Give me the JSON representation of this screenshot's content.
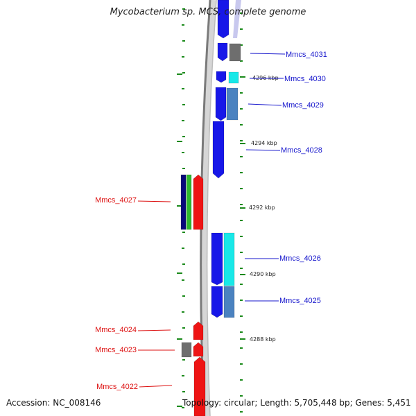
{
  "title": "Mycobacterium sp. MCS, complete genome",
  "accession": "Accession: NC_008146",
  "topology": "Topology: circular; Length: 5,705,448 bp; Genes: 5,451",
  "colors": {
    "blue": "#1717e8",
    "grey": "#6e6e6e",
    "cyan": "#19e8e8",
    "steelblue": "#4b82c0",
    "red": "#ee1414",
    "green": "#2eb82e",
    "navy": "#08087a",
    "tick": "#1a8a1a",
    "line": "#7a7a7a",
    "label_red": "#dd1111",
    "label_blue": "#1515cc"
  },
  "kbp_markers": [
    {
      "id": "kbp-4296",
      "text": "4296 kbp"
    },
    {
      "id": "kbp-4294",
      "text": "4294 kbp"
    },
    {
      "id": "kbp-4292",
      "text": "4292 kbp"
    },
    {
      "id": "kbp-4290",
      "text": "4290 kbp"
    },
    {
      "id": "kbp-4288",
      "text": "4288 kbp"
    }
  ],
  "genes": [
    {
      "id": "Mmcs_4031",
      "label": "Mmcs_4031",
      "strand": "+"
    },
    {
      "id": "Mmcs_4030",
      "label": "Mmcs_4030",
      "strand": "+"
    },
    {
      "id": "Mmcs_4029",
      "label": "Mmcs_4029",
      "strand": "+"
    },
    {
      "id": "Mmcs_4028",
      "label": "Mmcs_4028",
      "strand": "+"
    },
    {
      "id": "Mmcs_4027",
      "label": "Mmcs_4027",
      "strand": "-"
    },
    {
      "id": "Mmcs_4026",
      "label": "Mmcs_4026",
      "strand": "+"
    },
    {
      "id": "Mmcs_4025",
      "label": "Mmcs_4025",
      "strand": "+"
    },
    {
      "id": "Mmcs_4024",
      "label": "Mmcs_4024",
      "strand": "-"
    },
    {
      "id": "Mmcs_4023",
      "label": "Mmcs_4023",
      "strand": "-"
    },
    {
      "id": "Mmcs_4022",
      "label": "Mmcs_4022",
      "strand": "-"
    }
  ]
}
